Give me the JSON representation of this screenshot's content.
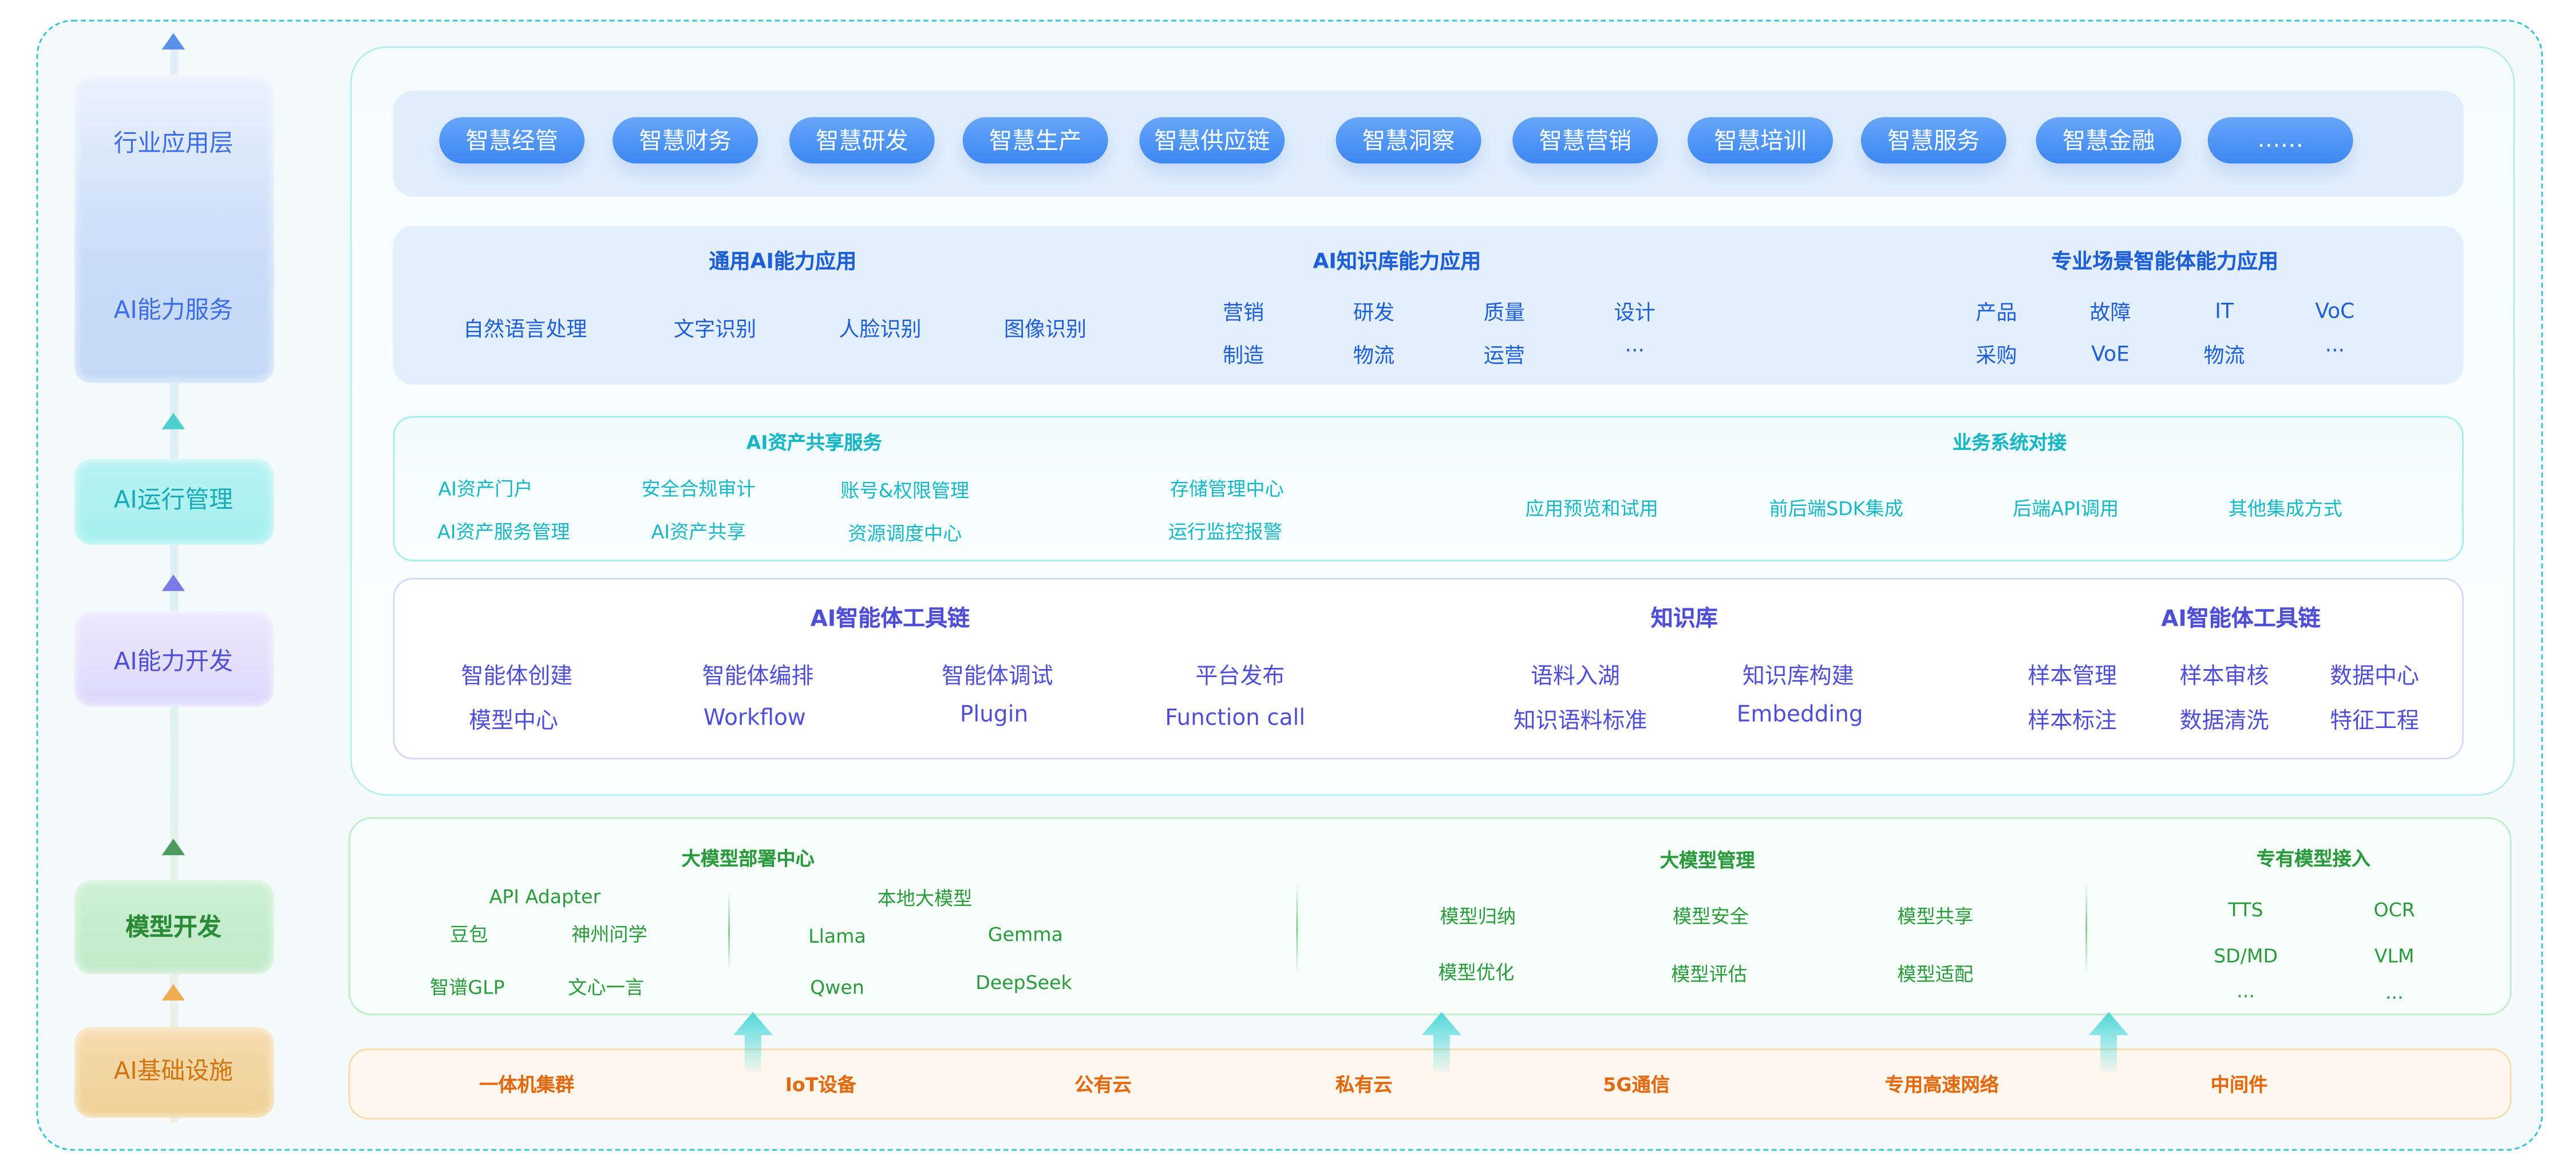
{
  "colors": {
    "border_dashed": "#2fc2d0",
    "pill": "#3d87f3",
    "blue_text": "#1c5fd8",
    "teal_text": "#16b6c4",
    "purple_text": "#4f4fd6",
    "green_text": "#2a9a3c",
    "orange_text": "#e2690e"
  },
  "layers": {
    "industry": "行业应用层",
    "ai_service": "AI能力服务",
    "ai_ops": "AI运行管理",
    "ai_dev": "AI能力开发",
    "model_dev": "模型开发",
    "infra": "AI基础设施"
  },
  "industry_apps": [
    "智慧经管",
    "智慧财务",
    "智慧研发",
    "智慧生产",
    "智慧供应链",
    "智慧洞察",
    "智慧营销",
    "智慧培训",
    "智慧服务",
    "智慧金融",
    "……"
  ],
  "ai_service": {
    "general": {
      "title": "通用AI能力应用",
      "items": [
        "自然语言处理",
        "文字识别",
        "人脸识别",
        "图像识别"
      ]
    },
    "knowledge": {
      "title": "AI知识库能力应用",
      "items": [
        "营销",
        "研发",
        "质量",
        "设计",
        "制造",
        "物流",
        "运营",
        "···"
      ]
    },
    "scenario": {
      "title": "专业场景智能体能力应用",
      "items": [
        "产品",
        "故障",
        "IT",
        "VoC",
        "采购",
        "VoE",
        "物流",
        "···"
      ]
    }
  },
  "ops": {
    "asset": {
      "title": "AI资产共享服务",
      "items": [
        "AI资产门户",
        "安全合规审计",
        "账号&权限管理",
        "存储管理中心",
        "AI资产服务管理",
        "AI资产共享",
        "资源调度中心",
        "运行监控报警"
      ]
    },
    "integration": {
      "title": "业务系统对接",
      "items": [
        "应用预览和试用",
        "前后端SDK集成",
        "后端API调用",
        "其他集成方式"
      ]
    }
  },
  "dev": {
    "toolchain": {
      "title": "AI智能体工具链",
      "items": [
        "智能体创建",
        "智能体编排",
        "智能体调试",
        "平台发布",
        "模型中心",
        "Workflow",
        "Plugin",
        "Function call"
      ]
    },
    "kb": {
      "title": "知识库",
      "items": [
        "语料入湖",
        "知识库构建",
        "知识语料标准",
        "Embedding"
      ]
    },
    "toolchain2": {
      "title": "AI智能体工具链",
      "items": [
        "样本管理",
        "样本审核",
        "数据中心",
        "样本标注",
        "数据清洗",
        "特征工程"
      ]
    }
  },
  "model": {
    "deploy": {
      "title": "大模型部署中心",
      "api": "API Adapter",
      "local": "本地大模型",
      "items": [
        "豆包",
        "神州问学",
        "智谱GLP",
        "文心一言",
        "Llama",
        "Gemma",
        "Qwen",
        "DeepSeek"
      ]
    },
    "manage": {
      "title": "大模型管理",
      "items": [
        "模型归纳",
        "模型安全",
        "模型共享",
        "模型优化",
        "模型评估",
        "模型适配"
      ]
    },
    "proprietary": {
      "title": "专有模型接入",
      "items": [
        "TTS",
        "OCR",
        "SD/MD",
        "VLM",
        "...",
        "..."
      ]
    }
  },
  "infra": [
    "一体机集群",
    "IoT设备",
    "公有云",
    "私有云",
    "5G通信",
    "专用高速网络",
    "中间件"
  ]
}
